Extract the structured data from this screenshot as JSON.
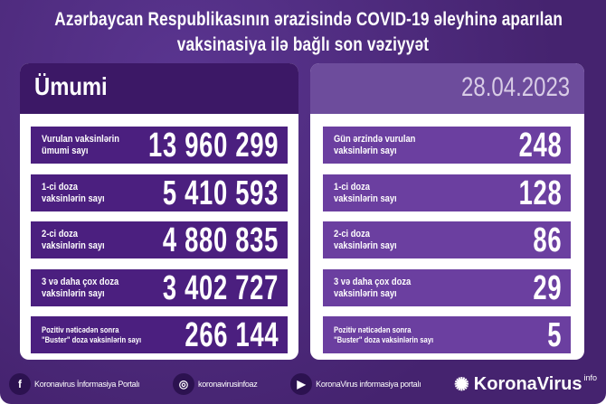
{
  "title": {
    "line1": "Azərbaycan Respublikasının ərazisində COVID-19 əleyhinə aparılan",
    "line2": "vaksinasiya ilə bağlı son vəziyyət"
  },
  "left": {
    "header": "Ümumi",
    "rows": [
      {
        "label1": "Vurulan vaksinlərin",
        "label2": "ümumi sayı",
        "value": "13 960 299"
      },
      {
        "label1": "1-ci doza",
        "label2": "vaksinlərin sayı",
        "value": "5 410 593"
      },
      {
        "label1": "2-ci doza",
        "label2": "vaksinlərin sayı",
        "value": "4 880 835"
      },
      {
        "label1": "3 və daha çox doza",
        "label2": "vaksinlərin sayı",
        "value": "3 402 727"
      },
      {
        "label1": "Pozitiv nəticədən sonra",
        "label2": "\"Buster\" doza vaksinlərin sayı",
        "value": "266 144"
      }
    ]
  },
  "right": {
    "date": "28.04.2023",
    "rows": [
      {
        "label1": "Gün ərzində vurulan",
        "label2": "vaksinlərin sayı",
        "value": "248"
      },
      {
        "label1": "1-ci doza",
        "label2": "vaksinlərin sayı",
        "value": "128"
      },
      {
        "label1": "2-ci doza",
        "label2": "vaksinlərin sayı",
        "value": "86"
      },
      {
        "label1": "3 və daha çox doza",
        "label2": "vaksinlərin sayı",
        "value": "29"
      },
      {
        "label1": "Pozitiv nəticədən sonra",
        "label2": "\"Buster\" doza vaksinlərin sayı",
        "value": "5"
      }
    ]
  },
  "footer": {
    "facebook": "Koronavirus İnformasiya Portalı",
    "instagram": "koronavirusinfoaz",
    "youtube": "KoronaVirus informasiya portalı",
    "logo": "KoronaVirus",
    "logo_sup": "info"
  },
  "colors": {
    "background": "#45236f",
    "left_row": "#4b1f7f",
    "right_row": "#6b3fa0",
    "right_header": "#6d4c9c"
  }
}
